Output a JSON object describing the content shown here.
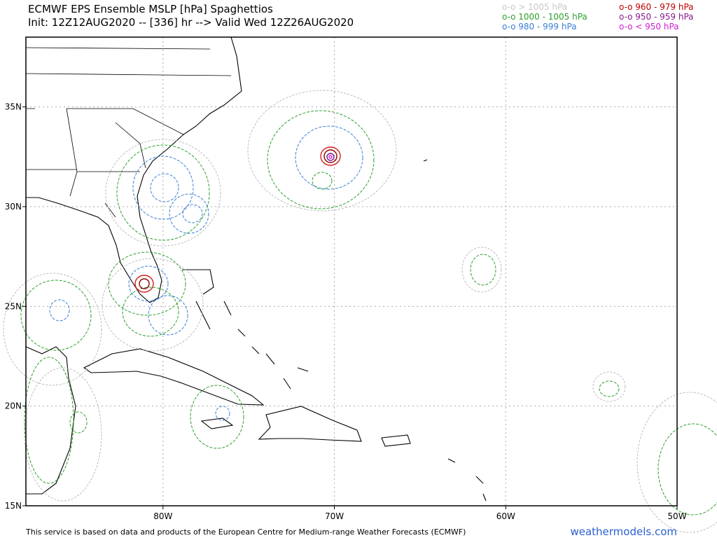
{
  "header": {
    "title": "ECMWF EPS Ensemble MSLP [hPa] Spaghettios",
    "subtitle": "Init: 12Z12AUG2020 -- [336] hr --> Valid Wed 12Z26AUG2020"
  },
  "legend": [
    {
      "label": "o-o > 1005 hPa",
      "color": "#c8c8c8"
    },
    {
      "label": "o-o 960 - 979 hPa",
      "color": "#c00000"
    },
    {
      "label": "o-o 1000 - 1005 hPa",
      "color": "#2ca02c"
    },
    {
      "label": "o-o 950 - 959 hPa",
      "color": "#8b1a8b"
    },
    {
      "label": "o-o 980 - 999 hPa",
      "color": "#3a7fd5"
    },
    {
      "label": "o-o < 950 hPa",
      "color": "#d020d0"
    }
  ],
  "map": {
    "xlim": [
      -88,
      -50
    ],
    "ylim": [
      15,
      38.5
    ],
    "xticks": [
      {
        "value": -80,
        "label": "80W"
      },
      {
        "value": -70,
        "label": "70W"
      },
      {
        "value": -60,
        "label": "60W"
      },
      {
        "value": -50,
        "label": "50W"
      }
    ],
    "yticks": [
      {
        "value": 35,
        "label": "35N"
      },
      {
        "value": 30,
        "label": "30N"
      },
      {
        "value": 25,
        "label": "25N"
      },
      {
        "value": 20,
        "label": "20N"
      },
      {
        "value": 15,
        "label": "15N"
      }
    ],
    "grid": true
  },
  "footer": {
    "note": "This service is based on data and products of the European Centre for Medium-range Weather Forecasts (ECMWF)",
    "brand": "weathermodels.com"
  }
}
